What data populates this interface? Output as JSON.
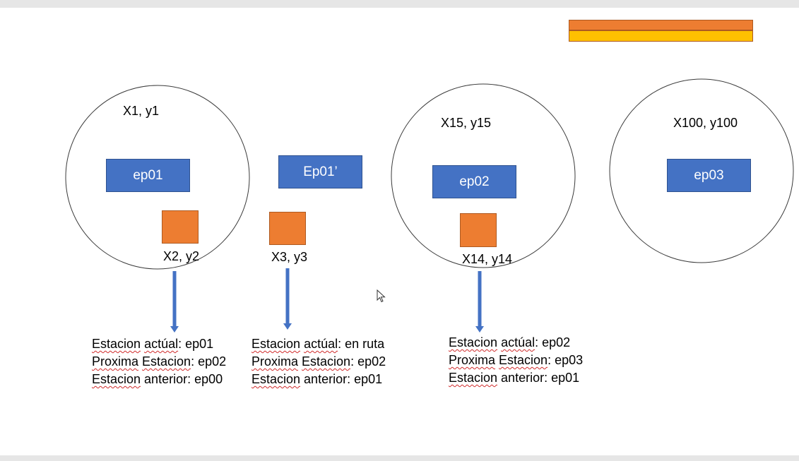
{
  "stations": [
    {
      "label": "ep01",
      "coord_top": "X1, y1",
      "coord_bottom": "X2, y2"
    },
    {
      "label": "Ep01’",
      "coord_bottom": "X3, y3"
    },
    {
      "label": "ep02",
      "coord_top": "X15, y15",
      "coord_bottom": "X14, y14"
    },
    {
      "label": "ep03",
      "coord_top": "X100, y100"
    }
  ],
  "info": [
    {
      "line1_a": "Estacion",
      "line1_b": "actúal",
      "line1_c": ": ep01",
      "line2_a": "Proxima",
      "line2_b": "Estacion",
      "line2_c": ": ep02",
      "line3_a": "Estacion",
      "line3_b": " anterior: ep00"
    },
    {
      "line1_a": "Estacion",
      "line1_b": "actúal",
      "line1_c": ": en ruta",
      "line2_a": "Proxima",
      "line2_b": "Estacion",
      "line2_c": ": ep02",
      "line3_a": "Estacion",
      "line3_b": " anterior: ep01"
    },
    {
      "line1_a": "Estacion",
      "line1_b": "actúal",
      "line1_c": ": ep02",
      "line2_a": "Proxima",
      "line2_b": "Estacion",
      "line2_c": ": ep03",
      "line3_a": "Estacion",
      "line3_b": " anterior: ep01"
    }
  ],
  "colors": {
    "station_blue": "#4472c4",
    "marker_orange": "#ed7d31",
    "bar_yellow": "#ffc000",
    "arrow_blue": "#4472c4",
    "spellcheck_red": "#d02b2b"
  }
}
